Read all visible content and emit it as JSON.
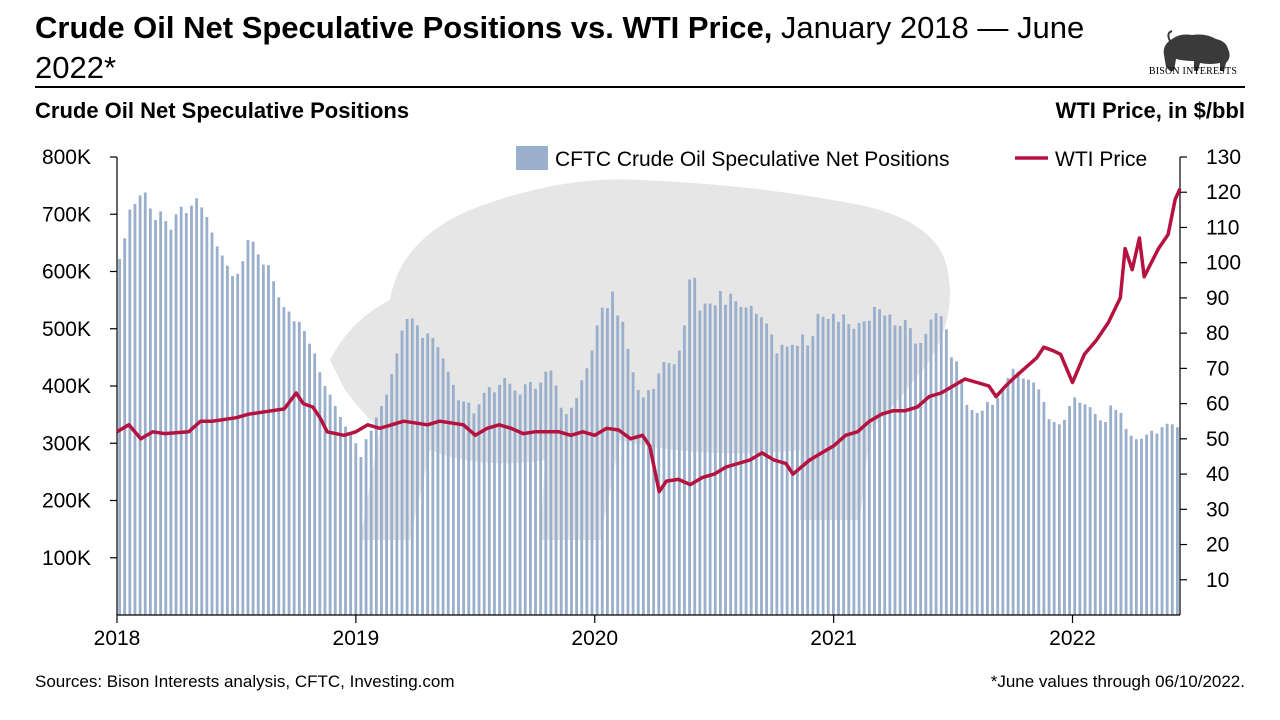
{
  "header": {
    "title_bold": "Crude Oil Net Speculative Positions vs. WTI Price,",
    "title_rest": " January 2018 — June 2022*",
    "left_axis_heading": "Crude Oil Net Speculative Positions",
    "right_axis_heading": "WTI Price, in $/bbl",
    "logo_text": "BISON INTERESTS"
  },
  "footer": {
    "sources": "Sources: Bison Interests analysis, CFTC, Investing.com",
    "note": "*June values through 06/10/2022."
  },
  "colors": {
    "bars": "#9aafcc",
    "line": "#b5123f",
    "background_bison": "#e6e6e6"
  },
  "chart_data": {
    "type": "bar+line",
    "title": "Crude Oil Net Speculative Positions vs. WTI Price, January 2018 — June 2022*",
    "x_start": 2018.0,
    "x_end": 2022.45,
    "x_ticks": [
      2018,
      2019,
      2020,
      2021,
      2022
    ],
    "y_left": {
      "label": "Crude Oil Net Speculative Positions",
      "min": 0,
      "max": 800000,
      "ticks": [
        100000,
        200000,
        300000,
        400000,
        500000,
        600000,
        700000,
        800000
      ],
      "tick_labels": [
        "100K",
        "200K",
        "300K",
        "400K",
        "500K",
        "600K",
        "700K",
        "800K"
      ]
    },
    "y_right": {
      "label": "WTI Price, in $/bbl",
      "min": 0,
      "max": 130,
      "ticks": [
        10,
        20,
        30,
        40,
        50,
        60,
        70,
        80,
        90,
        100,
        110,
        120,
        130
      ],
      "tick_labels": [
        "10",
        "20",
        "30",
        "40",
        "50",
        "60",
        "70",
        "80",
        "90",
        "100",
        "110",
        "120",
        "130"
      ]
    },
    "legend": {
      "bars_label": "CFTC Crude Oil Speculative Net Positions",
      "line_label": "WTI Price",
      "position": "top-right"
    },
    "series": [
      {
        "name": "CFTC Crude Oil Speculative Net Positions",
        "axis": "left",
        "kind": "bar",
        "values": [
          622000,
          658000,
          708000,
          718000,
          733000,
          738000,
          710000,
          690000,
          705000,
          688000,
          673000,
          700000,
          713000,
          702000,
          715000,
          728000,
          712000,
          695000,
          668000,
          644000,
          628000,
          610000,
          592000,
          596000,
          618000,
          655000,
          652000,
          630000,
          612000,
          611000,
          583000,
          555000,
          538000,
          530000,
          513000,
          512000,
          496000,
          474000,
          457000,
          424000,
          400000,
          385000,
          365000,
          346000,
          329000,
          320000,
          300000,
          276000,
          307000,
          322000,
          345000,
          365000,
          385000,
          421000,
          457000,
          497000,
          517000,
          518000,
          506000,
          484000,
          492000,
          484000,
          468000,
          448000,
          425000,
          402000,
          375000,
          373000,
          371000,
          352000,
          368000,
          388000,
          398000,
          389000,
          402000,
          414000,
          404000,
          392000,
          385000,
          403000,
          407000,
          395000,
          406000,
          425000,
          427000,
          401000,
          362000,
          351000,
          362000,
          379000,
          410000,
          431000,
          462000,
          506000,
          537000,
          536000,
          565000,
          523000,
          512000,
          465000,
          424000,
          393000,
          380000,
          393000,
          395000,
          422000,
          442000,
          440000,
          438000,
          462000,
          506000,
          586000,
          589000,
          532000,
          544000,
          544000,
          541000,
          566000,
          542000,
          561000,
          548000,
          538000,
          537000,
          540000,
          526000,
          520000,
          509000,
          490000,
          457000,
          472000,
          469000,
          472000,
          470000,
          490000,
          471000,
          487000,
          526000,
          521000,
          517000,
          526000,
          512000,
          525000,
          508000,
          500000,
          510000,
          513000,
          514000,
          538000,
          534000,
          523000,
          525000,
          506000,
          505000,
          515000,
          501000,
          474000,
          475000,
          491000,
          516000,
          527000,
          522000,
          499000,
          450000,
          443000,
          412000,
          367000,
          358000,
          353000,
          357000,
          372000,
          367000,
          379000,
          394000,
          414000,
          430000,
          425000,
          413000,
          411000,
          406000,
          394000,
          372000,
          342000,
          337000,
          333000,
          341000,
          365000,
          380000,
          371000,
          368000,
          363000,
          351000,
          340000,
          337000,
          366000,
          358000,
          353000,
          325000,
          313000,
          307000,
          308000,
          315000,
          322000,
          317000,
          328000,
          334000,
          333000,
          328000
        ]
      },
      {
        "name": "WTI Price",
        "axis": "right",
        "kind": "line",
        "points": [
          [
            2018.0,
            52
          ],
          [
            2018.05,
            54
          ],
          [
            2018.1,
            50
          ],
          [
            2018.15,
            52
          ],
          [
            2018.2,
            51.5
          ],
          [
            2018.3,
            52
          ],
          [
            2018.35,
            55
          ],
          [
            2018.4,
            55
          ],
          [
            2018.5,
            56
          ],
          [
            2018.55,
            57
          ],
          [
            2018.65,
            58
          ],
          [
            2018.7,
            58.5
          ],
          [
            2018.75,
            63
          ],
          [
            2018.78,
            60
          ],
          [
            2018.82,
            59
          ],
          [
            2018.85,
            56
          ],
          [
            2018.88,
            52
          ],
          [
            2018.95,
            51
          ],
          [
            2019.0,
            52
          ],
          [
            2019.05,
            54
          ],
          [
            2019.1,
            53
          ],
          [
            2019.2,
            55
          ],
          [
            2019.3,
            54
          ],
          [
            2019.35,
            55
          ],
          [
            2019.45,
            54
          ],
          [
            2019.5,
            51
          ],
          [
            2019.55,
            53
          ],
          [
            2019.6,
            54
          ],
          [
            2019.65,
            53
          ],
          [
            2019.7,
            51.5
          ],
          [
            2019.75,
            52
          ],
          [
            2019.85,
            52
          ],
          [
            2019.9,
            51
          ],
          [
            2019.95,
            52
          ],
          [
            2020.0,
            51
          ],
          [
            2020.05,
            53
          ],
          [
            2020.1,
            52.5
          ],
          [
            2020.15,
            50
          ],
          [
            2020.2,
            51
          ],
          [
            2020.23,
            48
          ],
          [
            2020.27,
            35
          ],
          [
            2020.3,
            38
          ],
          [
            2020.35,
            38.5
          ],
          [
            2020.4,
            37
          ],
          [
            2020.45,
            39
          ],
          [
            2020.5,
            40
          ],
          [
            2020.55,
            42
          ],
          [
            2020.6,
            43
          ],
          [
            2020.65,
            44
          ],
          [
            2020.7,
            46
          ],
          [
            2020.75,
            44
          ],
          [
            2020.8,
            43
          ],
          [
            2020.83,
            40
          ],
          [
            2020.9,
            44
          ],
          [
            2020.95,
            46
          ],
          [
            2021.0,
            48
          ],
          [
            2021.05,
            51
          ],
          [
            2021.1,
            52
          ],
          [
            2021.15,
            55
          ],
          [
            2021.2,
            57
          ],
          [
            2021.25,
            58
          ],
          [
            2021.3,
            58
          ],
          [
            2021.35,
            59
          ],
          [
            2021.4,
            62
          ],
          [
            2021.45,
            63
          ],
          [
            2021.5,
            65
          ],
          [
            2021.55,
            67
          ],
          [
            2021.6,
            66
          ],
          [
            2021.65,
            65
          ],
          [
            2021.68,
            62
          ],
          [
            2021.72,
            65
          ],
          [
            2021.75,
            67
          ],
          [
            2021.8,
            70
          ],
          [
            2021.85,
            73
          ],
          [
            2021.88,
            76
          ],
          [
            2021.92,
            75
          ],
          [
            2021.95,
            74
          ],
          [
            2022.0,
            66
          ],
          [
            2022.05,
            74
          ],
          [
            2022.1,
            78
          ],
          [
            2022.15,
            83
          ],
          [
            2022.2,
            90
          ],
          [
            2022.22,
            104
          ],
          [
            2022.25,
            98
          ],
          [
            2022.28,
            107
          ],
          [
            2022.3,
            96
          ],
          [
            2022.33,
            100
          ],
          [
            2022.36,
            104
          ],
          [
            2022.4,
            108
          ],
          [
            2022.43,
            118
          ],
          [
            2022.45,
            121
          ]
        ]
      }
    ]
  }
}
